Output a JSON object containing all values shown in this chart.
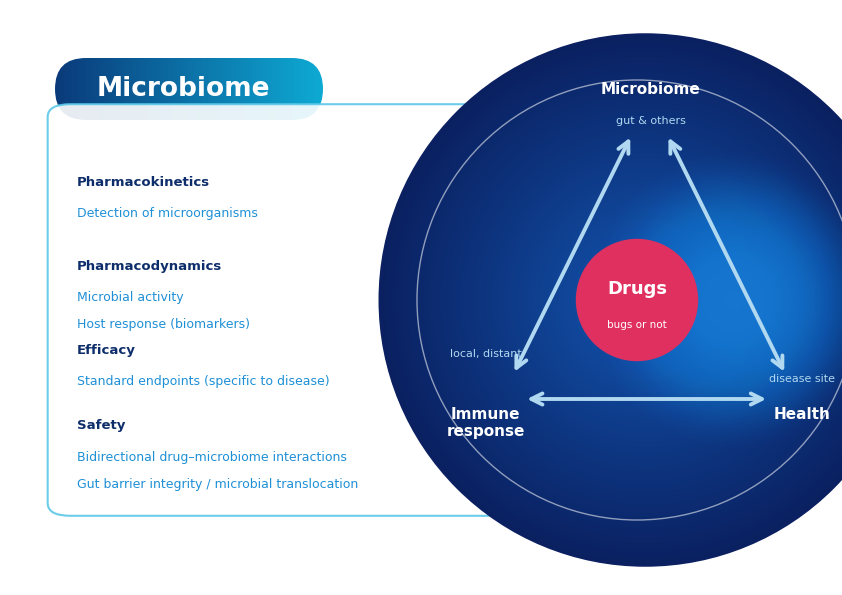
{
  "bg_color": "#ffffff",
  "title_text": "Microbiome",
  "title_bg_color1": "#0a3a7a",
  "title_bg_color2": "#0eaad4",
  "box_border_color": "#5bc8e8",
  "left_items": [
    {
      "bold": "Pharmacokinetics",
      "lines": [
        "Detection of microorganisms"
      ]
    },
    {
      "bold": "Pharmacodynamics",
      "lines": [
        "Microbial activity",
        "Host response (biomarkers)"
      ]
    },
    {
      "bold": "Efficacy",
      "lines": [
        "Standard endpoints (specific to disease)"
      ]
    },
    {
      "bold": "Safety",
      "lines": [
        "Bidirectional drug–microbiome interactions",
        "Gut barrier integrity / microbial translocation"
      ]
    }
  ],
  "bold_color": "#0d2d6b",
  "light_color": "#1e90d6",
  "drugs_circle_color": "#e03060",
  "arrow_color": "#b0d8f0",
  "drugs_label": "Drugs",
  "drugs_sublabel": "bugs or not",
  "outer_dark": "#0a2060",
  "outer_mid": "#1255b0",
  "outer_light": "#1a7ad4",
  "inner_ring_color": "#7ab8e0"
}
